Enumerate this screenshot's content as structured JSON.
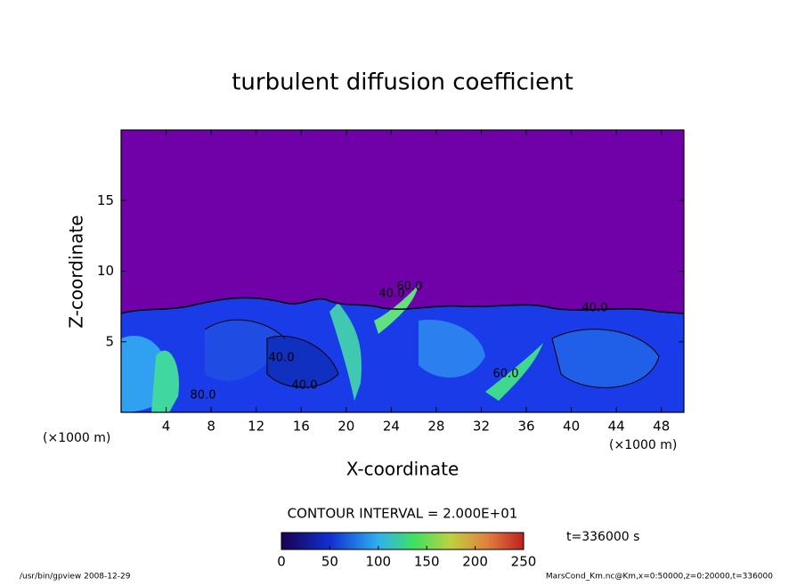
{
  "chart_data": {
    "type": "contour",
    "title": "turbulent diffusion coefficient",
    "xlabel": "X-coordinate",
    "ylabel": "Z-coordinate",
    "x_unit": "(×1000 m)",
    "y_unit": "(×1000 m)",
    "xlim": [
      0,
      50
    ],
    "xticks": [
      4,
      8,
      12,
      16,
      20,
      24,
      28,
      32,
      36,
      40,
      44,
      48
    ],
    "ylim": [
      0,
      20
    ],
    "yticks": [
      5,
      10,
      15
    ],
    "contour_interval_label": "CONTOUR INTERVAL = 2.000E+01",
    "contour_labels": [
      "40.0",
      "40.0",
      "40.0",
      "40.0",
      "60.0",
      "60.0",
      "80.0"
    ],
    "colorbar_lim": [
      0,
      250
    ],
    "colorbar_ticks": [
      0,
      50,
      100,
      150,
      200,
      250
    ],
    "time_label": "t=336000 s",
    "footer_left": "/usr/bin/gpview  2008-12-29",
    "footer_right": "MarsCond_Km.nc@Km,x=0:50000,z=0:20000,t=336000"
  }
}
